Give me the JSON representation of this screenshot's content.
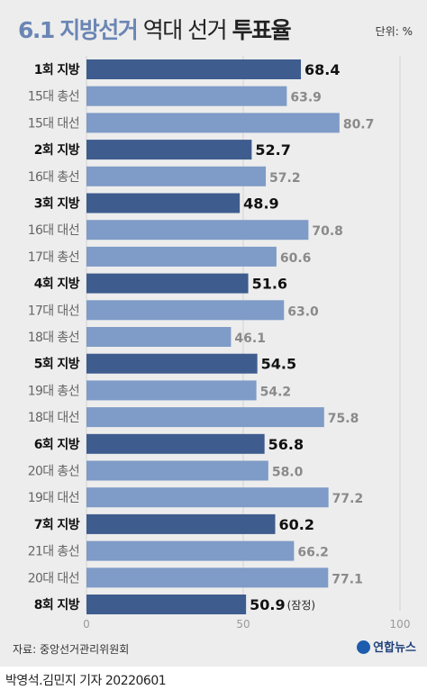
{
  "header": {
    "title_part1": "6.1",
    "title_part2": "지방선거",
    "title_part3": "역대 선거",
    "title_part4": "투표율",
    "unit": "단위: %"
  },
  "chart_data": {
    "type": "bar",
    "orientation": "horizontal",
    "categories": [
      "1회 지방",
      "15대 총선",
      "15대 대선",
      "2회 지방",
      "16대 총선",
      "3회 지방",
      "16대 대선",
      "17대 총선",
      "4회 지방",
      "17대 대선",
      "18대 총선",
      "5회 지방",
      "19대 총선",
      "18대 대선",
      "6회 지방",
      "20대 총선",
      "19대 대선",
      "7회 지방",
      "21대 총선",
      "20대 대선",
      "8회 지방"
    ],
    "values": [
      68.4,
      63.9,
      80.7,
      52.7,
      57.2,
      48.9,
      70.8,
      60.6,
      51.6,
      63.0,
      46.1,
      54.5,
      54.2,
      75.8,
      56.8,
      58.0,
      77.2,
      60.2,
      66.2,
      77.1,
      50.9
    ],
    "value_labels": [
      "68.4",
      "63.9",
      "80.7",
      "52.7",
      "57.2",
      "48.9",
      "70.8",
      "60.6",
      "51.6",
      "63.0",
      "46.1",
      "54.5",
      "54.2",
      "75.8",
      "56.8",
      "58.0",
      "77.2",
      "60.2",
      "66.2",
      "77.1",
      "50.9"
    ],
    "highlight": [
      true,
      false,
      false,
      true,
      false,
      true,
      false,
      false,
      true,
      false,
      false,
      true,
      false,
      false,
      true,
      false,
      false,
      true,
      false,
      false,
      true
    ],
    "annotation": {
      "index": 20,
      "text": "(잠정)"
    },
    "xlim": [
      0,
      100
    ],
    "xticks": [
      "0",
      "50",
      "100"
    ],
    "grid": true,
    "colors": {
      "local": "#3e5d8e",
      "other": "#7f9bc7",
      "grid": "#d2d2d2",
      "local_label": "#111111",
      "other_label": "#8a8a8a"
    }
  },
  "footer": {
    "source": "자료: 중앙선거관리위원회",
    "logo": "연합뉴스",
    "byline": "박영석.김민지 기자  20220601"
  }
}
